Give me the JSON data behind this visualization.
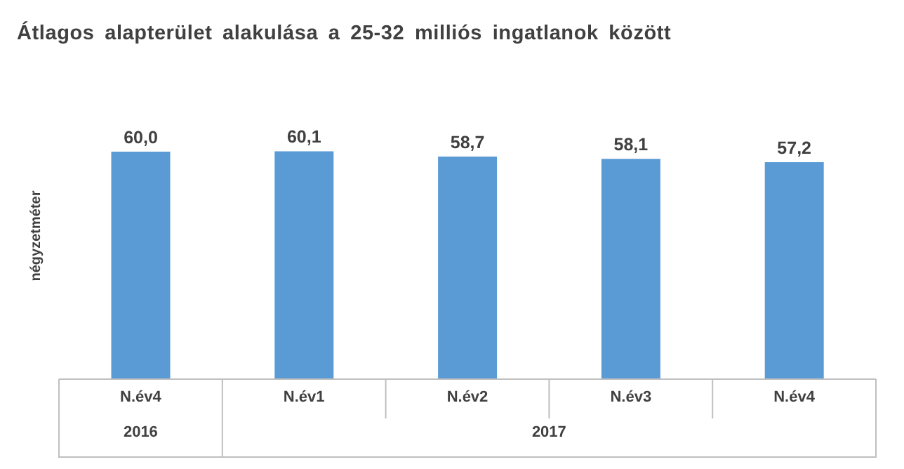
{
  "chart_data": {
    "type": "bar",
    "title": "Átlagos alapterület alakulása a 25-32 milliós ingatlanok között",
    "ylabel": "négyzetméter",
    "categories": [
      "N.év4",
      "N.év1",
      "N.év2",
      "N.év3",
      "N.év4"
    ],
    "values": [
      60.0,
      60.1,
      58.7,
      58.1,
      57.2
    ],
    "color": "#5b9bd5",
    "value_labels": [
      "60,0",
      "60,1",
      "58,7",
      "58,1",
      "57,2"
    ],
    "annotations": [
      "2016",
      "2017"
    ]
  }
}
